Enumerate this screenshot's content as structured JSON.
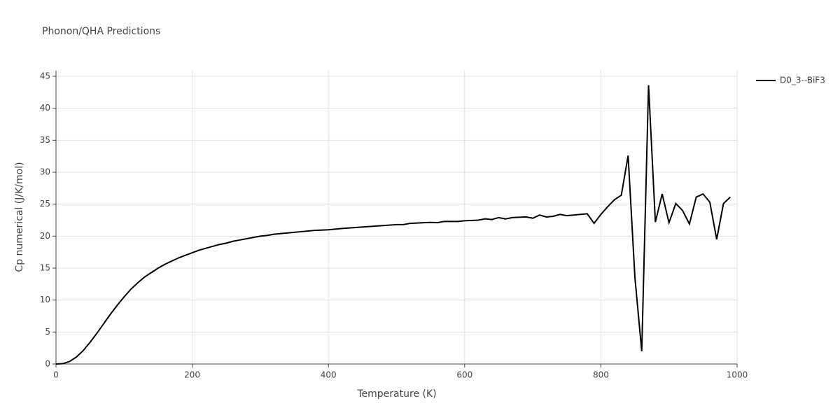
{
  "chart_data": {
    "type": "line",
    "title": "Phonon/QHA Predictions",
    "x_label": "Temperature (K)",
    "y_label": "Cp numerical (J/K/mol)",
    "x": [
      0,
      10,
      20,
      30,
      40,
      50,
      60,
      70,
      80,
      90,
      100,
      110,
      120,
      130,
      140,
      150,
      160,
      170,
      180,
      190,
      200,
      210,
      220,
      230,
      240,
      250,
      260,
      270,
      280,
      290,
      300,
      310,
      320,
      340,
      360,
      380,
      400,
      420,
      440,
      460,
      480,
      500,
      510,
      520,
      540,
      550,
      560,
      570,
      590,
      600,
      620,
      630,
      640,
      650,
      660,
      670,
      690,
      700,
      710,
      720,
      730,
      740,
      750,
      770,
      780,
      790,
      800,
      810,
      820,
      830,
      840,
      850,
      860,
      870,
      880,
      890,
      900,
      910,
      920,
      930,
      940,
      950,
      960,
      970,
      980,
      990
    ],
    "series": [
      {
        "name": "D0_3--BiF3",
        "color": "#000000",
        "values": [
          0,
          0.05,
          0.4,
          1.1,
          2.1,
          3.4,
          4.8,
          6.3,
          7.8,
          9.2,
          10.5,
          11.7,
          12.7,
          13.6,
          14.3,
          15.0,
          15.6,
          16.1,
          16.6,
          17.0,
          17.4,
          17.8,
          18.1,
          18.4,
          18.7,
          18.9,
          19.2,
          19.4,
          19.6,
          19.8,
          20.0,
          20.1,
          20.3,
          20.5,
          20.7,
          20.9,
          21.0,
          21.2,
          21.35,
          21.5,
          21.65,
          21.8,
          21.8,
          22.0,
          22.1,
          22.15,
          22.1,
          22.3,
          22.3,
          22.4,
          22.5,
          22.7,
          22.6,
          22.9,
          22.7,
          22.9,
          23.0,
          22.8,
          23.3,
          23.0,
          23.1,
          23.4,
          23.2,
          23.4,
          23.5,
          22.0,
          23.4,
          24.6,
          25.7,
          26.4,
          32.6,
          13.5,
          2.0,
          43.6,
          22.2,
          26.6,
          22.1,
          25.1,
          24.0,
          21.9,
          26.1,
          26.6,
          25.3,
          19.5,
          25.1,
          26.1
        ]
      }
    ],
    "xlim": [
      0,
      1000
    ],
    "xticks": [
      0,
      200,
      400,
      600,
      800,
      1000
    ],
    "ylim": [
      0,
      45
    ],
    "yticks": [
      0,
      5,
      10,
      15,
      20,
      25,
      30,
      35,
      40,
      45
    ],
    "grid": true,
    "legend": "top-right"
  }
}
